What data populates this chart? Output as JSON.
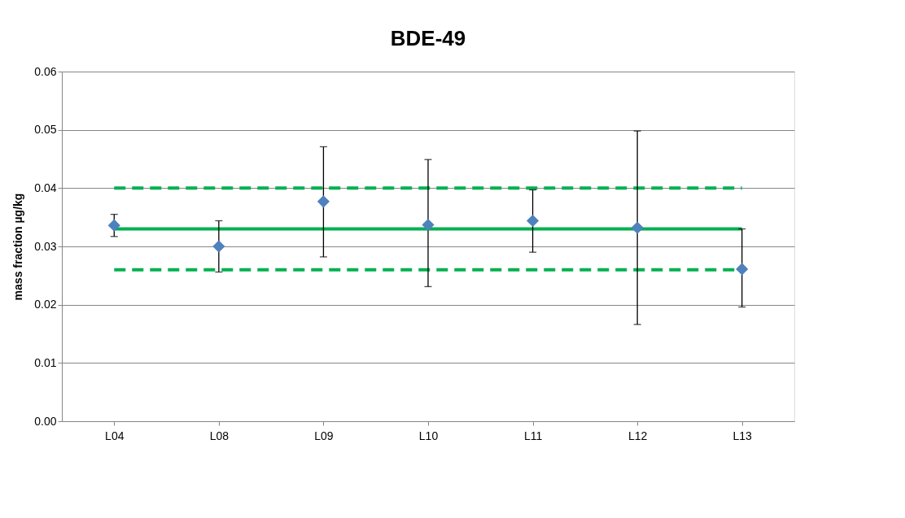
{
  "chart_data": {
    "type": "scatter",
    "title": "BDE-49",
    "ylabel": "mass fraction µg/kg",
    "categories": [
      "L04",
      "L08",
      "L09",
      "L10",
      "L11",
      "L12",
      "L13"
    ],
    "ylim": [
      0,
      0.06
    ],
    "yticks": [
      {
        "value": 0,
        "label": "0.00"
      },
      {
        "value": 0.01,
        "label": "0.01"
      },
      {
        "value": 0.02,
        "label": "0.02"
      },
      {
        "value": 0.03,
        "label": "0.03"
      },
      {
        "value": 0.04,
        "label": "0.04"
      },
      {
        "value": 0.05,
        "label": "0.05"
      },
      {
        "value": 0.06,
        "label": "0.06"
      }
    ],
    "grid": "y",
    "series": [
      {
        "type": "line",
        "color": "#00b050",
        "line_style": "dashed",
        "marker": "none",
        "values": [
          0.04,
          0.04,
          0.04,
          0.04,
          0.04,
          0.04,
          0.04
        ]
      },
      {
        "type": "line",
        "color": "#00b050",
        "line_style": "solid",
        "marker": "none",
        "values": [
          0.033,
          0.033,
          0.033,
          0.033,
          0.033,
          0.033,
          0.033
        ]
      },
      {
        "type": "line",
        "color": "#00b050",
        "line_style": "dashed",
        "marker": "none",
        "values": [
          0.026,
          0.026,
          0.026,
          0.026,
          0.026,
          0.026,
          0.026
        ]
      },
      {
        "color": "#4f81bd",
        "marker": "diamond",
        "values": [
          0.0336,
          0.03,
          0.0377,
          0.0337,
          0.0344,
          0.0332,
          0.0261
        ],
        "errors": [
          [
            0.0317,
            0.0355
          ],
          [
            0.0256,
            0.0344
          ],
          [
            0.0282,
            0.0471
          ],
          [
            0.0231,
            0.0449
          ],
          [
            0.029,
            0.0397
          ],
          [
            0.0166,
            0.0498
          ],
          [
            0.0196,
            0.033
          ]
        ]
      }
    ]
  }
}
